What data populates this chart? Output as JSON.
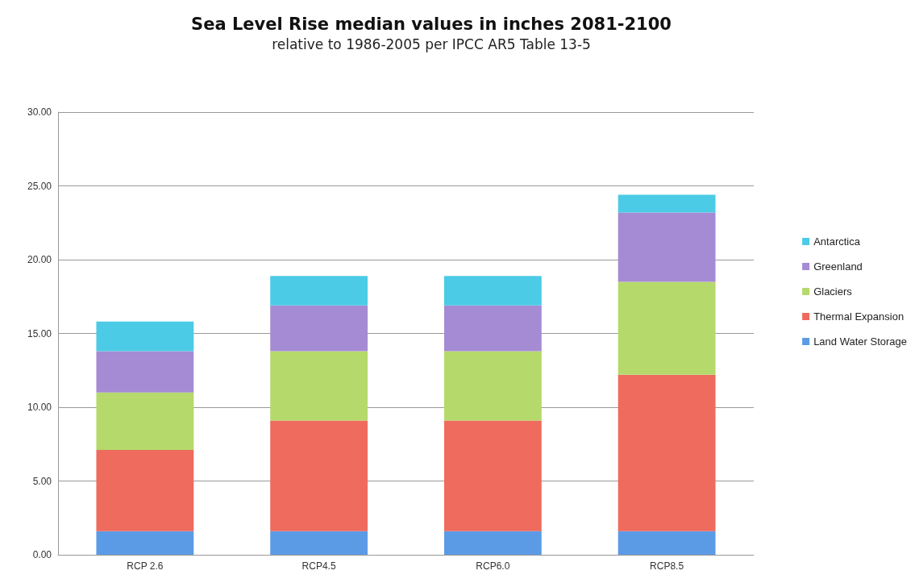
{
  "chart_data": {
    "type": "bar",
    "title": "Sea Level Rise median values in inches 2081-2100",
    "subtitle": "relative to 1986-2005 per IPCC AR5 Table 13-5",
    "categories": [
      "RCP 2.6",
      "RCP4.5",
      "RCP6.0",
      "RCP8.5"
    ],
    "stacked": true,
    "series": [
      {
        "name": "Land Water Storage",
        "color": "#5b9be6",
        "values": [
          1.6,
          1.6,
          1.6,
          1.6
        ]
      },
      {
        "name": "Thermal Expansion",
        "color": "#ee6b5e",
        "values": [
          5.5,
          7.5,
          7.5,
          10.6
        ]
      },
      {
        "name": "Glaciers",
        "color": "#b5d96a",
        "values": [
          3.9,
          4.7,
          4.7,
          6.3
        ]
      },
      {
        "name": "Greenland",
        "color": "#a58bd4",
        "values": [
          2.8,
          3.1,
          3.1,
          4.7
        ]
      },
      {
        "name": "Antarctica",
        "color": "#4ccbe6",
        "values": [
          2.0,
          2.0,
          2.0,
          1.2
        ]
      }
    ],
    "ylim": [
      0,
      30
    ],
    "yticks": [
      {
        "value": 0,
        "label": "0.00"
      },
      {
        "value": 5,
        "label": "5.00"
      },
      {
        "value": 10,
        "label": "10.00"
      },
      {
        "value": 15,
        "label": "15.00"
      },
      {
        "value": 20,
        "label": "20.00"
      },
      {
        "value": 25,
        "label": "25.00"
      },
      {
        "value": 30,
        "label": "30.00"
      }
    ],
    "grid": "y",
    "legend": "right"
  }
}
